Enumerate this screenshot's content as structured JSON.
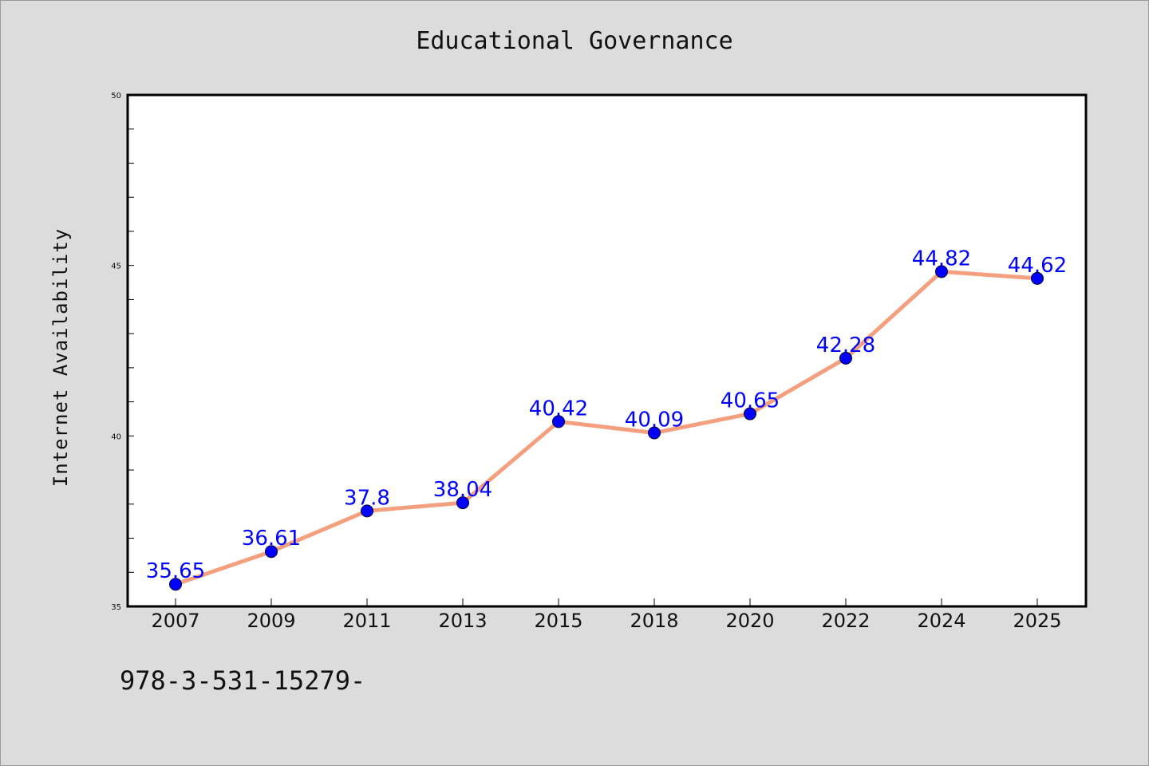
{
  "chart_data": {
    "type": "line",
    "title": "Educational Governance",
    "xlabel": "",
    "ylabel": "Internet Availability",
    "categories": [
      "2007",
      "2009",
      "2011",
      "2013",
      "2015",
      "2018",
      "2020",
      "2022",
      "2024",
      "2025"
    ],
    "series": [
      {
        "values": [
          35.65,
          36.61,
          37.8,
          38.04,
          40.42,
          40.09,
          40.65,
          42.28,
          44.82,
          44.62
        ],
        "labels": [
          "35.65",
          "36.61",
          "37.8",
          "38.04",
          "40.42",
          "40.09",
          "40.65",
          "42.28",
          "44.82",
          "44.62"
        ],
        "line_color": "#f4a07e",
        "marker_color": "#0000ff"
      }
    ],
    "ylim": [
      35,
      50
    ],
    "yticks": [
      "35",
      "40",
      "45",
      "50"
    ],
    "grid": false,
    "legend": "none",
    "data_label_color": "#0000ff"
  },
  "footer": {
    "code": "978-3-531-15279-"
  },
  "colors": {
    "background": "#dcdcdc",
    "plot_background": "#ffffff",
    "axis": "#000000"
  }
}
